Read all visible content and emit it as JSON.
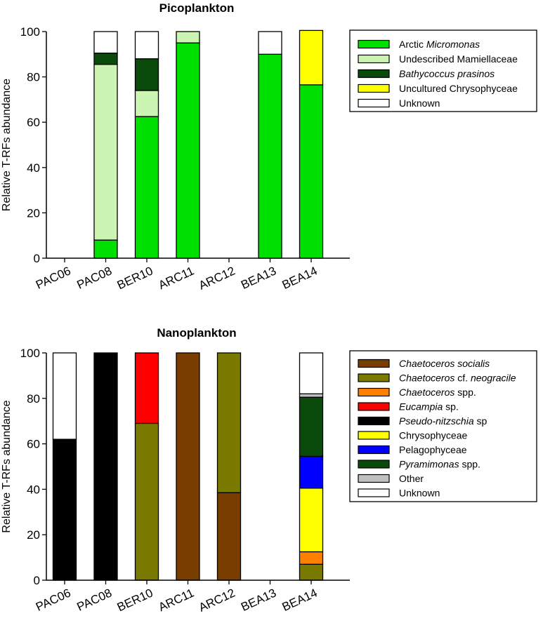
{
  "chart_data": [
    {
      "type": "bar",
      "stacked": true,
      "title": "Picoplankton",
      "ylabel": "Relative T-RFs abundance",
      "xlabel": "",
      "ylim": [
        0,
        100
      ],
      "yticks": [
        0,
        20,
        40,
        60,
        80,
        100
      ],
      "categories": [
        "PAC06",
        "PAC08",
        "BER10",
        "ARC11",
        "ARC12",
        "BEA13",
        "BEA14"
      ],
      "legend_position": "top-right",
      "series": [
        {
          "name": "Arctic Micromonas",
          "label": [
            {
              "t": "Arctic ",
              "i": false
            },
            {
              "t": "Micromonas",
              "i": true
            }
          ],
          "color": "#00e000",
          "values": [
            0,
            8,
            62.5,
            95,
            0,
            90,
            76.5
          ]
        },
        {
          "name": "Undescribed Mamiellaceae",
          "label": [
            {
              "t": "Undescribed Mamiellaceae",
              "i": false
            }
          ],
          "color": "#ccf5b3",
          "values": [
            0,
            77.5,
            11.5,
            5,
            0,
            0,
            0
          ]
        },
        {
          "name": "Bathycoccus prasinos",
          "label": [
            {
              "t": "Bathycoccus prasinos",
              "i": true
            }
          ],
          "color": "#0a4a0a",
          "values": [
            0,
            5,
            14,
            0,
            0,
            0,
            0
          ]
        },
        {
          "name": "Uncultured Chrysophyceae",
          "label": [
            {
              "t": "Uncultured Chrysophyceae",
              "i": false
            }
          ],
          "color": "#ffff00",
          "values": [
            0,
            0,
            0,
            0,
            0,
            0,
            24
          ]
        },
        {
          "name": "Unknown",
          "label": [
            {
              "t": "Unknown",
              "i": false
            }
          ],
          "color": "#ffffff",
          "values": [
            0,
            9.5,
            12,
            0,
            0,
            10,
            0
          ]
        }
      ]
    },
    {
      "type": "bar",
      "stacked": true,
      "title": "Nanoplankton",
      "ylabel": "Relative T-RFs abundance",
      "xlabel": "",
      "ylim": [
        0,
        100
      ],
      "yticks": [
        0,
        20,
        40,
        60,
        80,
        100
      ],
      "categories": [
        "PAC06",
        "PAC08",
        "BER10",
        "ARC11",
        "ARC12",
        "BEA13",
        "BEA14"
      ],
      "legend_position": "top-right",
      "series": [
        {
          "name": "Chaetoceros socialis",
          "label": [
            {
              "t": "Chaetoceros socialis",
              "i": true
            }
          ],
          "color": "#7a3d00",
          "values": [
            0,
            0,
            0,
            100,
            38.5,
            0,
            0
          ]
        },
        {
          "name": "Chaetoceros cf. neogracile",
          "label": [
            {
              "t": "Chaetoceros",
              "i": true
            },
            {
              "t": " cf. ",
              "i": false
            },
            {
              "t": "neogracile",
              "i": true
            }
          ],
          "color": "#7a7a00",
          "values": [
            0,
            0,
            69,
            0,
            61.5,
            0,
            7
          ]
        },
        {
          "name": "Chaetoceros spp.",
          "label": [
            {
              "t": "Chaetoceros",
              "i": true
            },
            {
              "t": " spp.",
              "i": false
            }
          ],
          "color": "#ff8000",
          "values": [
            0,
            0,
            0,
            0,
            0,
            0,
            5.5
          ]
        },
        {
          "name": "Eucampia sp.",
          "label": [
            {
              "t": "Eucampia",
              "i": true
            },
            {
              "t": " sp.",
              "i": false
            }
          ],
          "color": "#ff0000",
          "values": [
            0,
            0,
            31,
            0,
            0,
            0,
            0
          ]
        },
        {
          "name": "Pseudo-nitzschia sp",
          "label": [
            {
              "t": "Pseudo-nitzschia",
              "i": true
            },
            {
              "t": " sp",
              "i": false
            }
          ],
          "color": "#000000",
          "values": [
            62,
            100,
            0,
            0,
            0,
            0,
            0
          ]
        },
        {
          "name": "Chrysophyceae",
          "label": [
            {
              "t": "Chrysophyceae",
              "i": false
            }
          ],
          "color": "#ffff00",
          "values": [
            0,
            0,
            0,
            0,
            0,
            0,
            28
          ]
        },
        {
          "name": "Pelagophyceae",
          "label": [
            {
              "t": "Pelagophyceae",
              "i": false
            }
          ],
          "color": "#0000ff",
          "values": [
            0,
            0,
            0,
            0,
            0,
            0,
            14
          ]
        },
        {
          "name": "Pyramimonas spp.",
          "label": [
            {
              "t": "Pyramimonas",
              "i": true
            },
            {
              "t": " spp.",
              "i": false
            }
          ],
          "color": "#0a4a0a",
          "values": [
            0,
            0,
            0,
            0,
            0,
            0,
            26
          ]
        },
        {
          "name": "Other",
          "label": [
            {
              "t": "Other",
              "i": false
            }
          ],
          "color": "#c0c0c0",
          "values": [
            0,
            0,
            0,
            0,
            0,
            0,
            1.5
          ]
        },
        {
          "name": "Unknown",
          "label": [
            {
              "t": "Unknown",
              "i": false
            }
          ],
          "color": "#ffffff",
          "values": [
            38,
            0,
            0,
            0,
            0,
            0,
            18
          ]
        }
      ]
    }
  ]
}
